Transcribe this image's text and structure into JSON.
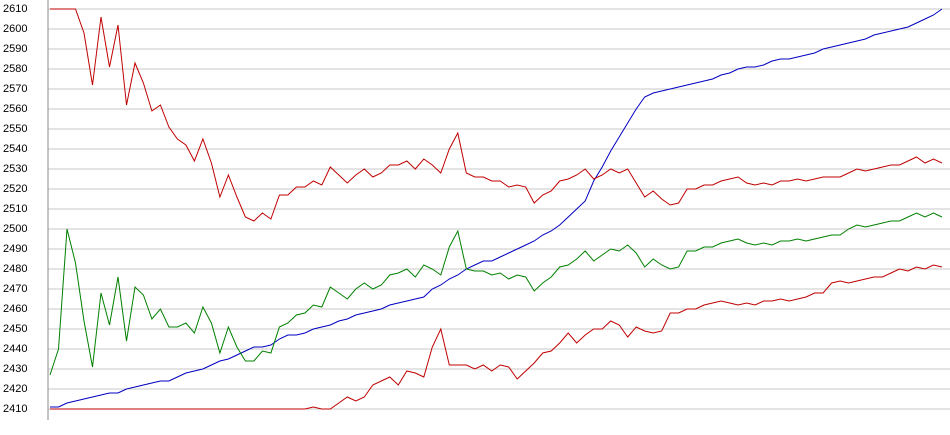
{
  "chart_data": {
    "type": "line",
    "categories": [
      null,
      null,
      null,
      null,
      null,
      null,
      null,
      null,
      null,
      null,
      null,
      null,
      null,
      null,
      null,
      null,
      null,
      null,
      null,
      null,
      null,
      null,
      null,
      null,
      null,
      null,
      null,
      null,
      null,
      null,
      null,
      null,
      null,
      null,
      null,
      null,
      null,
      null,
      null,
      null,
      null,
      null,
      null,
      null,
      null,
      null,
      null,
      null,
      null,
      null,
      null,
      null,
      null,
      null,
      null,
      null,
      null,
      null,
      null,
      null,
      null,
      null,
      null,
      null,
      null,
      null,
      null,
      null,
      null,
      null,
      null,
      null,
      null,
      null,
      null,
      null,
      null,
      null,
      null,
      null,
      null,
      null,
      null,
      null,
      null,
      null,
      null,
      null,
      null,
      null,
      null,
      null,
      null,
      null,
      null,
      null,
      null,
      null,
      null,
      null,
      null,
      null,
      null,
      null,
      null,
      null
    ],
    "ylim": [
      2410,
      2610
    ],
    "yticks": [
      2410,
      2420,
      2430,
      2440,
      2450,
      2460,
      2470,
      2480,
      2490,
      2500,
      2510,
      2520,
      2530,
      2540,
      2550,
      2560,
      2570,
      2580,
      2590,
      2600,
      2610
    ],
    "grid": true,
    "series": [
      {
        "color": "#0000c0",
        "values": [
          2411,
          2411,
          2413,
          2414,
          2415,
          2416,
          2417,
          2418,
          2418,
          2420,
          2421,
          2422,
          2423,
          2424,
          2424,
          2426,
          2428,
          2429,
          2430,
          2432,
          2434,
          2435,
          2437,
          2439,
          2441,
          2441,
          2442,
          2445,
          2447,
          2447,
          2448,
          2450,
          2451,
          2452,
          2454,
          2455,
          2457,
          2458,
          2459,
          2460,
          2462,
          2463,
          2464,
          2465,
          2466,
          2470,
          2472,
          2475,
          2477,
          2480,
          2482,
          2484,
          2484,
          2486,
          2488,
          2490,
          2492,
          2494,
          2497,
          2499,
          2502,
          2506,
          2510,
          2514,
          2524,
          2531,
          2539,
          2546,
          2553,
          2560,
          2566,
          2568,
          2569,
          2570,
          2571,
          2572,
          2573,
          2574,
          2575,
          2577,
          2578,
          2580,
          2581,
          2581,
          2582,
          2584,
          2585,
          2585,
          2586,
          2587,
          2588,
          2590,
          2591,
          2592,
          2593,
          2594,
          2595,
          2597,
          2598,
          2599,
          2600,
          2601,
          2603,
          2605,
          2607,
          2610
        ]
      },
      {
        "color": "#c00000",
        "values": [
          2610,
          2610,
          2610,
          2610,
          2598,
          2572,
          2606,
          2581,
          2602,
          2562,
          2583,
          2573,
          2559,
          2562,
          2551,
          2545,
          2542,
          2534,
          2545,
          2533,
          2516,
          2527,
          2516,
          2506,
          2504,
          2508,
          2505,
          2517,
          2517,
          2521,
          2521,
          2524,
          2522,
          2531,
          2527,
          2523,
          2527,
          2530,
          2526,
          2528,
          2532,
          2532,
          2534,
          2530,
          2535,
          2532,
          2528,
          2540,
          2548,
          2528,
          2526,
          2526,
          2524,
          2524,
          2521,
          2522,
          2521,
          2513,
          2517,
          2519,
          2524,
          2525,
          2527,
          2530,
          2525,
          2527,
          2530,
          2528,
          2530,
          2523,
          2516,
          2519,
          2515,
          2512,
          2513,
          2520,
          2520,
          2522,
          2522,
          2524,
          2525,
          2526,
          2523,
          2522,
          2523,
          2522,
          2524,
          2524,
          2525,
          2524,
          2525,
          2526,
          2526,
          2526,
          2528,
          2530,
          2529,
          2530,
          2531,
          2532,
          2532,
          2534,
          2536,
          2533,
          2535,
          2533
        ]
      },
      {
        "color": "#008000",
        "values": [
          2427,
          2440,
          2500,
          2483,
          2454,
          2431,
          2468,
          2452,
          2476,
          2444,
          2471,
          2467,
          2455,
          2460,
          2451,
          2451,
          2453,
          2448,
          2461,
          2453,
          2438,
          2451,
          2441,
          2434,
          2434,
          2439,
          2438,
          2451,
          2453,
          2457,
          2458,
          2462,
          2461,
          2471,
          2468,
          2465,
          2470,
          2473,
          2470,
          2472,
          2477,
          2478,
          2480,
          2476,
          2482,
          2480,
          2477,
          2491,
          2499,
          2480,
          2479,
          2479,
          2477,
          2478,
          2475,
          2477,
          2476,
          2469,
          2473,
          2476,
          2481,
          2482,
          2485,
          2489,
          2484,
          2487,
          2490,
          2489,
          2492,
          2488,
          2481,
          2485,
          2482,
          2480,
          2481,
          2489,
          2489,
          2491,
          2491,
          2493,
          2494,
          2495,
          2493,
          2492,
          2493,
          2492,
          2494,
          2494,
          2495,
          2494,
          2495,
          2496,
          2497,
          2497,
          2500,
          2502,
          2501,
          2502,
          2503,
          2504,
          2504,
          2506,
          2508,
          2506,
          2508,
          2506
        ]
      },
      {
        "color": "#c00000",
        "values": [
          2410,
          2410,
          2410,
          2410,
          2410,
          2410,
          2410,
          2410,
          2410,
          2410,
          2410,
          2410,
          2410,
          2410,
          2410,
          2410,
          2410,
          2410,
          2410,
          2410,
          2410,
          2410,
          2410,
          2410,
          2410,
          2410,
          2410,
          2410,
          2410,
          2410,
          2410,
          2411,
          2410,
          2410,
          2413,
          2416,
          2414,
          2416,
          2422,
          2424,
          2426,
          2422,
          2429,
          2428,
          2426,
          2441,
          2450,
          2432,
          2432,
          2432,
          2430,
          2432,
          2429,
          2432,
          2431,
          2425,
          2429,
          2433,
          2438,
          2439,
          2443,
          2448,
          2443,
          2447,
          2450,
          2450,
          2454,
          2452,
          2446,
          2451,
          2449,
          2448,
          2449,
          2458,
          2458,
          2460,
          2460,
          2462,
          2463,
          2464,
          2463,
          2462,
          2463,
          2462,
          2464,
          2464,
          2465,
          2464,
          2465,
          2466,
          2468,
          2468,
          2473,
          2474,
          2473,
          2474,
          2475,
          2476,
          2476,
          2478,
          2480,
          2479,
          2481,
          2480,
          2482,
          2481
        ]
      }
    ]
  }
}
